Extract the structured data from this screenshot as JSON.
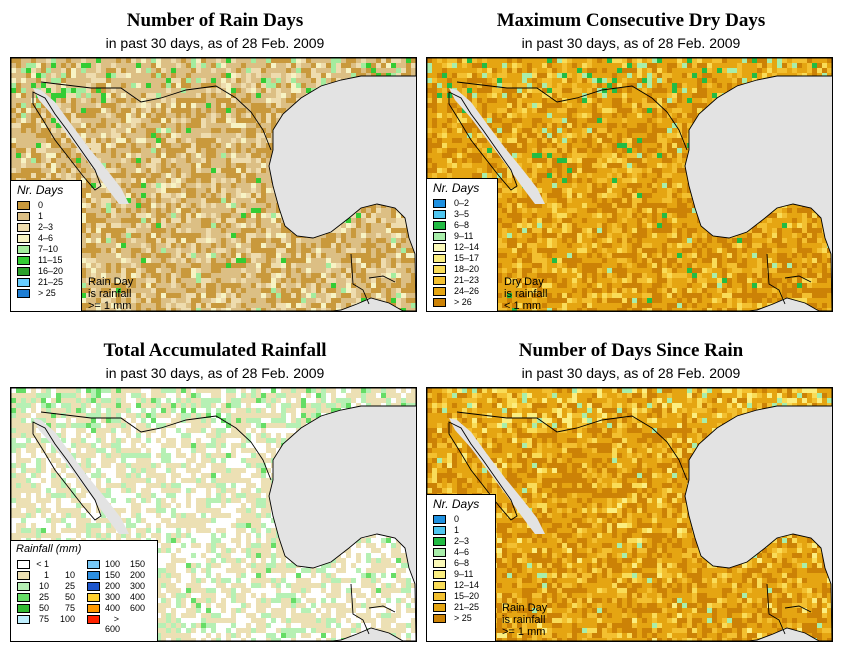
{
  "panels": [
    {
      "title": "Number of Rain Days",
      "subtitle": "in past 30 days, as of  28 Feb. 2009",
      "legend_title": "Nr. Days",
      "legend": [
        {
          "label": "0",
          "color": "#c9993c"
        },
        {
          "label": "1",
          "color": "#dcbf84"
        },
        {
          "label": "2–3",
          "color": "#eedcae"
        },
        {
          "label": "4–6",
          "color": "#f7f3c4"
        },
        {
          "label": "7–10",
          "color": "#a4ec9e"
        },
        {
          "label": "11–15",
          "color": "#33cc33"
        },
        {
          "label": "16–20",
          "color": "#2ca02c"
        },
        {
          "label": "21–25",
          "color": "#66ccff"
        },
        {
          "label": "> 25",
          "color": "#1e7ed4"
        }
      ],
      "note": [
        "Rain Day",
        "is rainfall",
        ">= 1 mm"
      ],
      "palette": {
        "base": "#c9993c",
        "mix": [
          "#dcbf84",
          "#eedcae",
          "#f7f3c4",
          "#a4ec9e",
          "#33cc33"
        ]
      }
    },
    {
      "title": "Maximum Consecutive Dry Days",
      "subtitle": "in past 30 days, as of  28 Feb. 2009",
      "legend_title": "Nr. Days",
      "legend": [
        {
          "label": "0–2",
          "color": "#1e90e0"
        },
        {
          "label": "3–5",
          "color": "#4fc6f0"
        },
        {
          "label": "6–8",
          "color": "#22bb44"
        },
        {
          "label": "9–11",
          "color": "#a8eeaa"
        },
        {
          "label": "12–14",
          "color": "#fbf9b8"
        },
        {
          "label": "15–17",
          "color": "#fbee80"
        },
        {
          "label": "18–20",
          "color": "#f9dc58"
        },
        {
          "label": "21–23",
          "color": "#f3c030"
        },
        {
          "label": "24–26",
          "color": "#e5a512"
        },
        {
          "label": "> 26",
          "color": "#cc8206"
        }
      ],
      "note": [
        "Dry Day",
        "is rainfall",
        "< 1 mm"
      ],
      "palette": {
        "base": "#cc8206",
        "mix": [
          "#e5a512",
          "#f3c030",
          "#f9dc58",
          "#a8eeaa",
          "#22bb44"
        ]
      }
    },
    {
      "title": "Total Accumulated Rainfall",
      "subtitle": "in past 30 days, as of  28 Feb. 2009",
      "legend_title": "Rainfall (mm)",
      "legend_left": [
        {
          "from": "< 1",
          "to": "",
          "color": "#ffffff"
        },
        {
          "from": "1",
          "to": "10",
          "color": "#ece0b4"
        },
        {
          "from": "10",
          "to": "25",
          "color": "#b6f0b4"
        },
        {
          "from": "25",
          "to": "50",
          "color": "#66dd66"
        },
        {
          "from": "50",
          "to": "75",
          "color": "#33bb33"
        },
        {
          "from": "75",
          "to": "100",
          "color": "#bfefff"
        }
      ],
      "legend_right": [
        {
          "from": "100",
          "to": "150",
          "color": "#77c8f7"
        },
        {
          "from": "150",
          "to": "200",
          "color": "#2c8fe2"
        },
        {
          "from": "200",
          "to": "300",
          "color": "#1c55cc"
        },
        {
          "from": "300",
          "to": "400",
          "color": "#ffd030"
        },
        {
          "from": "400",
          "to": "600",
          "color": "#ff9900"
        },
        {
          "from": "> 600",
          "to": "",
          "color": "#ff2200"
        }
      ],
      "palette": {
        "base": "#ffffff",
        "mix": [
          "#ece0b4",
          "#b6f0b4",
          "#ece0b4",
          "#b6f0b4",
          "#66dd66"
        ]
      }
    },
    {
      "title": "Number of Days Since Rain",
      "subtitle": "in past 30 days, as of  28 Feb. 2009",
      "legend_title": "Nr. Days",
      "legend": [
        {
          "label": "0",
          "color": "#1e90e0"
        },
        {
          "label": "1",
          "color": "#4fc6f0"
        },
        {
          "label": "2–3",
          "color": "#22bb44"
        },
        {
          "label": "4–6",
          "color": "#a8eeaa"
        },
        {
          "label": "6–8",
          "color": "#fbf9b8"
        },
        {
          "label": "9–11",
          "color": "#fbee80"
        },
        {
          "label": "12–14",
          "color": "#f9dc58"
        },
        {
          "label": "15–20",
          "color": "#f3c030"
        },
        {
          "label": "21–25",
          "color": "#e5a512"
        },
        {
          "label": "> 25",
          "color": "#cc8206"
        }
      ],
      "note": [
        "Rain Day",
        "is rainfall",
        ">= 1 mm"
      ],
      "palette": {
        "base": "#cc8206",
        "mix": [
          "#e5a512",
          "#f3c030",
          "#f9dc58",
          "#fbee80",
          "#a8eeaa"
        ]
      }
    }
  ]
}
